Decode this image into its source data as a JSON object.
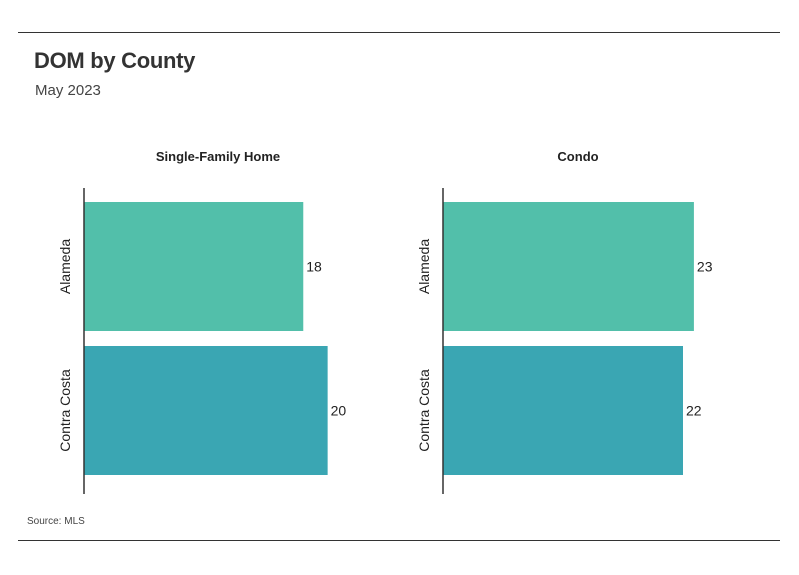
{
  "title": "DOM by County",
  "subtitle": "May 2023",
  "source": "Source: MLS",
  "colors": {
    "Alameda": "#52bfaa",
    "Contra Costa": "#3aa6b3",
    "axis": "#333333",
    "text": "#222222"
  },
  "chart_data": [
    {
      "type": "bar",
      "orientation": "horizontal",
      "title": "Single-Family Home",
      "categories": [
        "Alameda",
        "Contra Costa"
      ],
      "values": [
        18,
        20
      ],
      "xlim": [
        0,
        22
      ],
      "grid": false
    },
    {
      "type": "bar",
      "orientation": "horizontal",
      "title": "Condo",
      "categories": [
        "Alameda",
        "Contra Costa"
      ],
      "values": [
        23,
        22
      ],
      "xlim": [
        0,
        25.3
      ],
      "grid": false
    }
  ]
}
